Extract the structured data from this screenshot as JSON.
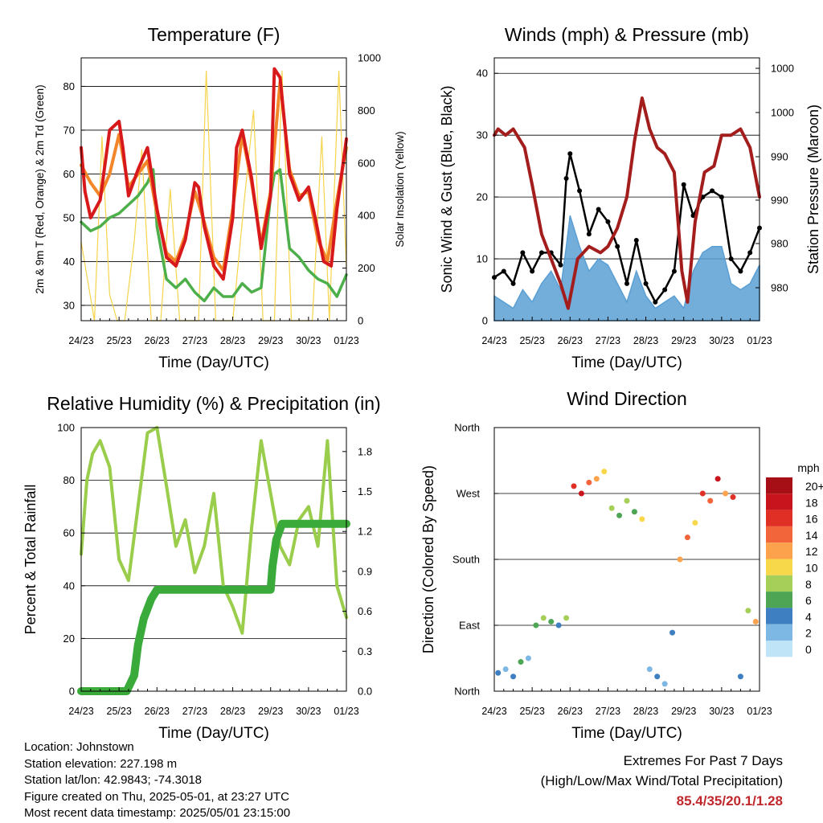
{
  "x_ticks": [
    "24/23",
    "25/23",
    "26/23",
    "27/23",
    "28/23",
    "29/23",
    "30/23",
    "01/23"
  ],
  "time_label": "Time (Day/UTC)",
  "temperature_panel": {
    "title": "Temperature (F)",
    "ylabel_left": "2m & 9m T (Red, Orange) & 2m Td (Green)",
    "ylabel_right": "Solar Insolation (Yellow)",
    "left_ticks": [
      "30",
      "40",
      "50",
      "60",
      "70",
      "80"
    ],
    "right_ticks": [
      "0",
      "200",
      "400",
      "600",
      "800",
      "1000"
    ]
  },
  "wind_panel": {
    "title": "Winds (mph) & Pressure (mb)",
    "ylabel_left": "Sonic Wind & Gust (Blue, Black)",
    "ylabel_right": "Station Pressure (Maroon)",
    "left_ticks": [
      "0",
      "10",
      "20",
      "30",
      "40"
    ],
    "right_ticks": [
      "980",
      "980",
      "990",
      "990",
      "1000",
      "1000"
    ]
  },
  "humidity_panel": {
    "title": "Relative Humidity (%) & Precipitation (in)",
    "ylabel_left": "Percent & Total Rainfall",
    "left_ticks": [
      "0",
      "20",
      "40",
      "60",
      "80",
      "100"
    ],
    "right_ticks": [
      "0.0",
      "0.3",
      "0.6",
      "0.9",
      "1.2",
      "1.5",
      "1.8"
    ]
  },
  "direction_panel": {
    "title": "Wind Direction",
    "ylabel_left": "Direction (Colored By Speed)",
    "dir_ticks": [
      "North",
      "East",
      "South",
      "West",
      "North"
    ],
    "legend_title": "mph",
    "legend_labels": [
      "20+",
      "18",
      "16",
      "14",
      "12",
      "10",
      "8",
      "6",
      "4",
      "2",
      "0"
    ],
    "legend_colors": [
      "#a50f15",
      "#c8141c",
      "#e03026",
      "#f2643a",
      "#fca24c",
      "#f7d84a",
      "#a6cf5a",
      "#4ea655",
      "#3d7fc0",
      "#7db7e3",
      "#bfe4f7"
    ]
  },
  "info": {
    "location": "Location: Johnstown",
    "elevation": "Station elevation: 227.198 m",
    "latlon": "Station lat/lon: 42.9843; -74.3018",
    "created": "Figure created on Thu, 2025-05-01, at 23:27 UTC",
    "recent": "Most recent data timestamp: 2025/05/01 23:15:00",
    "extremes_title": "Extremes For Past 7 Days",
    "extremes_sub": "(High/Low/Max Wind/Total Precipitation)",
    "extremes_values": "85.4/35/20.1/1.28"
  },
  "chart_data": [
    {
      "type": "line",
      "title": "Temperature (F)",
      "xlabel": "Time (Day/UTC)",
      "ylabel": "2m & 9m T (Red, Orange) & 2m Td (Green)",
      "y2label": "Solar Insolation (Yellow)",
      "xlim": [
        0,
        7
      ],
      "ylim": [
        26.5,
        86.5
      ],
      "y2lim": [
        0,
        1000
      ],
      "series": [
        {
          "color": "#d7191c",
          "axis": "left",
          "x": [
            0,
            0.1,
            0.25,
            0.5,
            0.75,
            1.0,
            1.1,
            1.25,
            1.5,
            1.75,
            2.0,
            2.25,
            2.5,
            2.75,
            3.0,
            3.1,
            3.25,
            3.5,
            3.75,
            4.0,
            4.1,
            4.25,
            4.5,
            4.75,
            5.0,
            5.1,
            5.25,
            5.5,
            5.75,
            6.0,
            6.2,
            6.4,
            6.6,
            6.75,
            7.0
          ],
          "y": [
            66,
            56,
            50,
            54,
            70,
            72,
            66,
            55,
            61,
            66,
            52,
            41,
            39,
            45,
            58,
            57,
            48,
            39,
            36,
            50,
            66,
            70,
            59,
            43,
            55,
            84,
            82,
            60,
            54,
            57,
            49,
            40,
            39,
            52,
            68
          ]
        },
        {
          "color": "#f4862a",
          "axis": "left",
          "x": [
            0,
            0.25,
            0.5,
            0.75,
            1.0,
            1.25,
            1.5,
            1.75,
            2.0,
            2.25,
            2.5,
            2.75,
            3.0,
            3.25,
            3.5,
            3.75,
            4.0,
            4.25,
            4.5,
            4.75,
            5.0,
            5.25,
            5.5,
            5.75,
            6.0,
            6.25,
            6.5,
            6.75,
            7.0
          ],
          "y": [
            62,
            58,
            55,
            60,
            69,
            57,
            60,
            63,
            51,
            42,
            40,
            46,
            56,
            49,
            41,
            38,
            52,
            69,
            58,
            44,
            56,
            81,
            61,
            55,
            56,
            45,
            40,
            54,
            66
          ]
        },
        {
          "color": "#4daf4a",
          "axis": "left",
          "x": [
            0,
            0.25,
            0.5,
            0.75,
            1.0,
            1.25,
            1.5,
            1.75,
            1.9,
            2.0,
            2.25,
            2.5,
            2.75,
            3.0,
            3.25,
            3.5,
            3.75,
            4.0,
            4.25,
            4.5,
            4.75,
            5.0,
            5.1,
            5.25,
            5.5,
            5.75,
            6.0,
            6.25,
            6.5,
            6.75,
            7.0
          ],
          "y": [
            49,
            47,
            48,
            50,
            51,
            53,
            55,
            58,
            61,
            48,
            36,
            34,
            36,
            33,
            31,
            34,
            32,
            32,
            35,
            33,
            34,
            55,
            60,
            61,
            43,
            41,
            38,
            36,
            35,
            32,
            37
          ]
        },
        {
          "color": "#f5d44a",
          "axis": "right",
          "x": [
            0,
            0.35,
            0.55,
            0.75,
            0.95,
            1.15,
            1.4,
            1.6,
            1.85,
            2.1,
            2.35,
            2.6,
            2.85,
            3.1,
            3.3,
            3.55,
            3.8,
            4.0,
            4.3,
            4.55,
            4.8,
            5.1,
            5.3,
            5.55,
            5.8,
            6.1,
            6.35,
            6.55,
            6.8,
            7.0
          ],
          "y": [
            300,
            0,
            700,
            100,
            0,
            0,
            300,
            650,
            0,
            0,
            500,
            0,
            0,
            0,
            950,
            0,
            0,
            0,
            450,
            800,
            0,
            0,
            950,
            0,
            0,
            0,
            700,
            0,
            950,
            200
          ]
        }
      ]
    },
    {
      "type": "line",
      "title": "Winds (mph) & Pressure (mb)",
      "xlabel": "Time (Day/UTC)",
      "ylabel": "Sonic Wind & Gust (Blue, Black)",
      "y2label": "Station Pressure (Maroon)",
      "xlim": [
        0,
        7
      ],
      "ylim": [
        0,
        42.5
      ],
      "series": [
        {
          "color": "#5a9fd4",
          "axis": "left",
          "x": [
            0,
            0.25,
            0.5,
            0.75,
            1.0,
            1.25,
            1.5,
            1.75,
            1.9,
            2.0,
            2.25,
            2.5,
            2.75,
            3.0,
            3.25,
            3.5,
            3.75,
            4.0,
            4.25,
            4.5,
            4.75,
            5.0,
            5.25,
            5.5,
            5.75,
            6.0,
            6.25,
            6.5,
            6.75,
            7.0
          ],
          "y": [
            4,
            3,
            2,
            5,
            3,
            6,
            8,
            5,
            12,
            17,
            12,
            8,
            10,
            9,
            6,
            3,
            8,
            4,
            2,
            3,
            4,
            2,
            8,
            11,
            12,
            12,
            6,
            5,
            6,
            9
          ]
        },
        {
          "color": "#000000",
          "axis": "left",
          "x": [
            0,
            0.25,
            0.5,
            0.75,
            1.0,
            1.25,
            1.5,
            1.75,
            1.9,
            2.0,
            2.25,
            2.5,
            2.75,
            3.0,
            3.25,
            3.5,
            3.75,
            4.0,
            4.25,
            4.5,
            4.75,
            5.0,
            5.25,
            5.5,
            5.75,
            6.0,
            6.25,
            6.5,
            6.75,
            7.0
          ],
          "y": [
            7,
            8,
            6,
            11,
            8,
            11,
            11,
            9,
            23,
            27,
            21,
            14,
            18,
            16,
            12,
            6,
            13,
            6,
            3,
            5,
            8,
            22,
            17,
            20,
            21,
            20,
            10,
            8,
            11,
            15
          ]
        },
        {
          "color": "#a31d1d",
          "axis": "left",
          "x": [
            0,
            0.1,
            0.3,
            0.5,
            0.8,
            1.0,
            1.25,
            1.5,
            1.75,
            1.95,
            2.2,
            2.5,
            2.8,
            3.0,
            3.25,
            3.5,
            3.7,
            3.9,
            4.1,
            4.3,
            4.5,
            4.75,
            4.95,
            5.1,
            5.3,
            5.55,
            5.8,
            6.0,
            6.25,
            6.5,
            6.75,
            7.0
          ],
          "y": [
            30,
            31,
            30,
            31,
            28,
            22,
            14,
            10,
            6,
            2,
            10,
            12,
            11,
            12,
            15,
            20,
            29,
            36,
            31,
            28,
            27,
            24,
            8,
            3,
            16,
            24,
            25,
            30,
            30,
            31,
            28,
            20
          ]
        }
      ]
    },
    {
      "type": "line",
      "title": "Relative Humidity (%) & Precipitation (in)",
      "xlabel": "Time (Day/UTC)",
      "ylabel": "Percent & Total Rainfall",
      "xlim": [
        0,
        7
      ],
      "ylim": [
        0,
        100
      ],
      "y2lim": [
        0,
        2.0
      ],
      "series": [
        {
          "color": "#9acd4c",
          "axis": "left",
          "x": [
            0,
            0.15,
            0.3,
            0.5,
            0.75,
            1.0,
            1.25,
            1.5,
            1.75,
            2.0,
            2.25,
            2.5,
            2.75,
            3.0,
            3.25,
            3.5,
            3.75,
            4.0,
            4.25,
            4.5,
            4.75,
            5.0,
            5.25,
            5.5,
            5.75,
            6.0,
            6.25,
            6.5,
            6.75,
            7.0
          ],
          "y": [
            52,
            80,
            90,
            95,
            85,
            50,
            42,
            70,
            98,
            100,
            78,
            55,
            65,
            45,
            55,
            75,
            40,
            32,
            22,
            62,
            95,
            75,
            55,
            48,
            65,
            70,
            55,
            95,
            40,
            28
          ]
        },
        {
          "color": "#3aaa3a",
          "axis": "right",
          "x": [
            0,
            0.5,
            1.0,
            1.2,
            1.4,
            1.5,
            1.65,
            1.85,
            2.0,
            2.5,
            3.0,
            3.5,
            4.0,
            4.5,
            4.8,
            5.0,
            5.05,
            5.15,
            5.3,
            6.0,
            6.5,
            7.0
          ],
          "y": [
            0,
            0,
            0,
            0,
            0.12,
            0.35,
            0.55,
            0.7,
            0.77,
            0.77,
            0.77,
            0.77,
            0.77,
            0.77,
            0.77,
            0.77,
            0.95,
            1.15,
            1.27,
            1.27,
            1.27,
            1.27
          ]
        }
      ]
    },
    {
      "type": "scatter",
      "title": "Wind Direction",
      "xlabel": "Time (Day/UTC)",
      "ylabel": "Direction (Colored By Speed)",
      "xlim": [
        0,
        7
      ],
      "ylim": [
        0,
        360
      ],
      "x": [
        0.1,
        0.3,
        0.5,
        0.7,
        0.9,
        1.1,
        1.3,
        1.5,
        1.7,
        1.9,
        2.1,
        2.3,
        2.5,
        2.7,
        2.9,
        3.1,
        3.3,
        3.5,
        3.7,
        3.9,
        4.1,
        4.3,
        4.5,
        4.7,
        4.9,
        5.1,
        5.3,
        5.5,
        5.7,
        5.9,
        6.1,
        6.3,
        6.5,
        6.7,
        6.9
      ],
      "y": [
        25,
        30,
        20,
        40,
        45,
        90,
        100,
        95,
        90,
        100,
        280,
        270,
        285,
        290,
        300,
        250,
        240,
        260,
        245,
        235,
        30,
        20,
        10,
        80,
        180,
        210,
        230,
        270,
        260,
        290,
        270,
        265,
        20,
        110,
        95
      ],
      "speed": [
        4,
        2,
        4,
        6,
        2,
        6,
        8,
        6,
        4,
        8,
        16,
        18,
        14,
        12,
        10,
        8,
        6,
        8,
        6,
        10,
        2,
        4,
        2,
        4,
        12,
        14,
        10,
        16,
        14,
        18,
        12,
        16,
        4,
        8,
        12
      ]
    }
  ]
}
